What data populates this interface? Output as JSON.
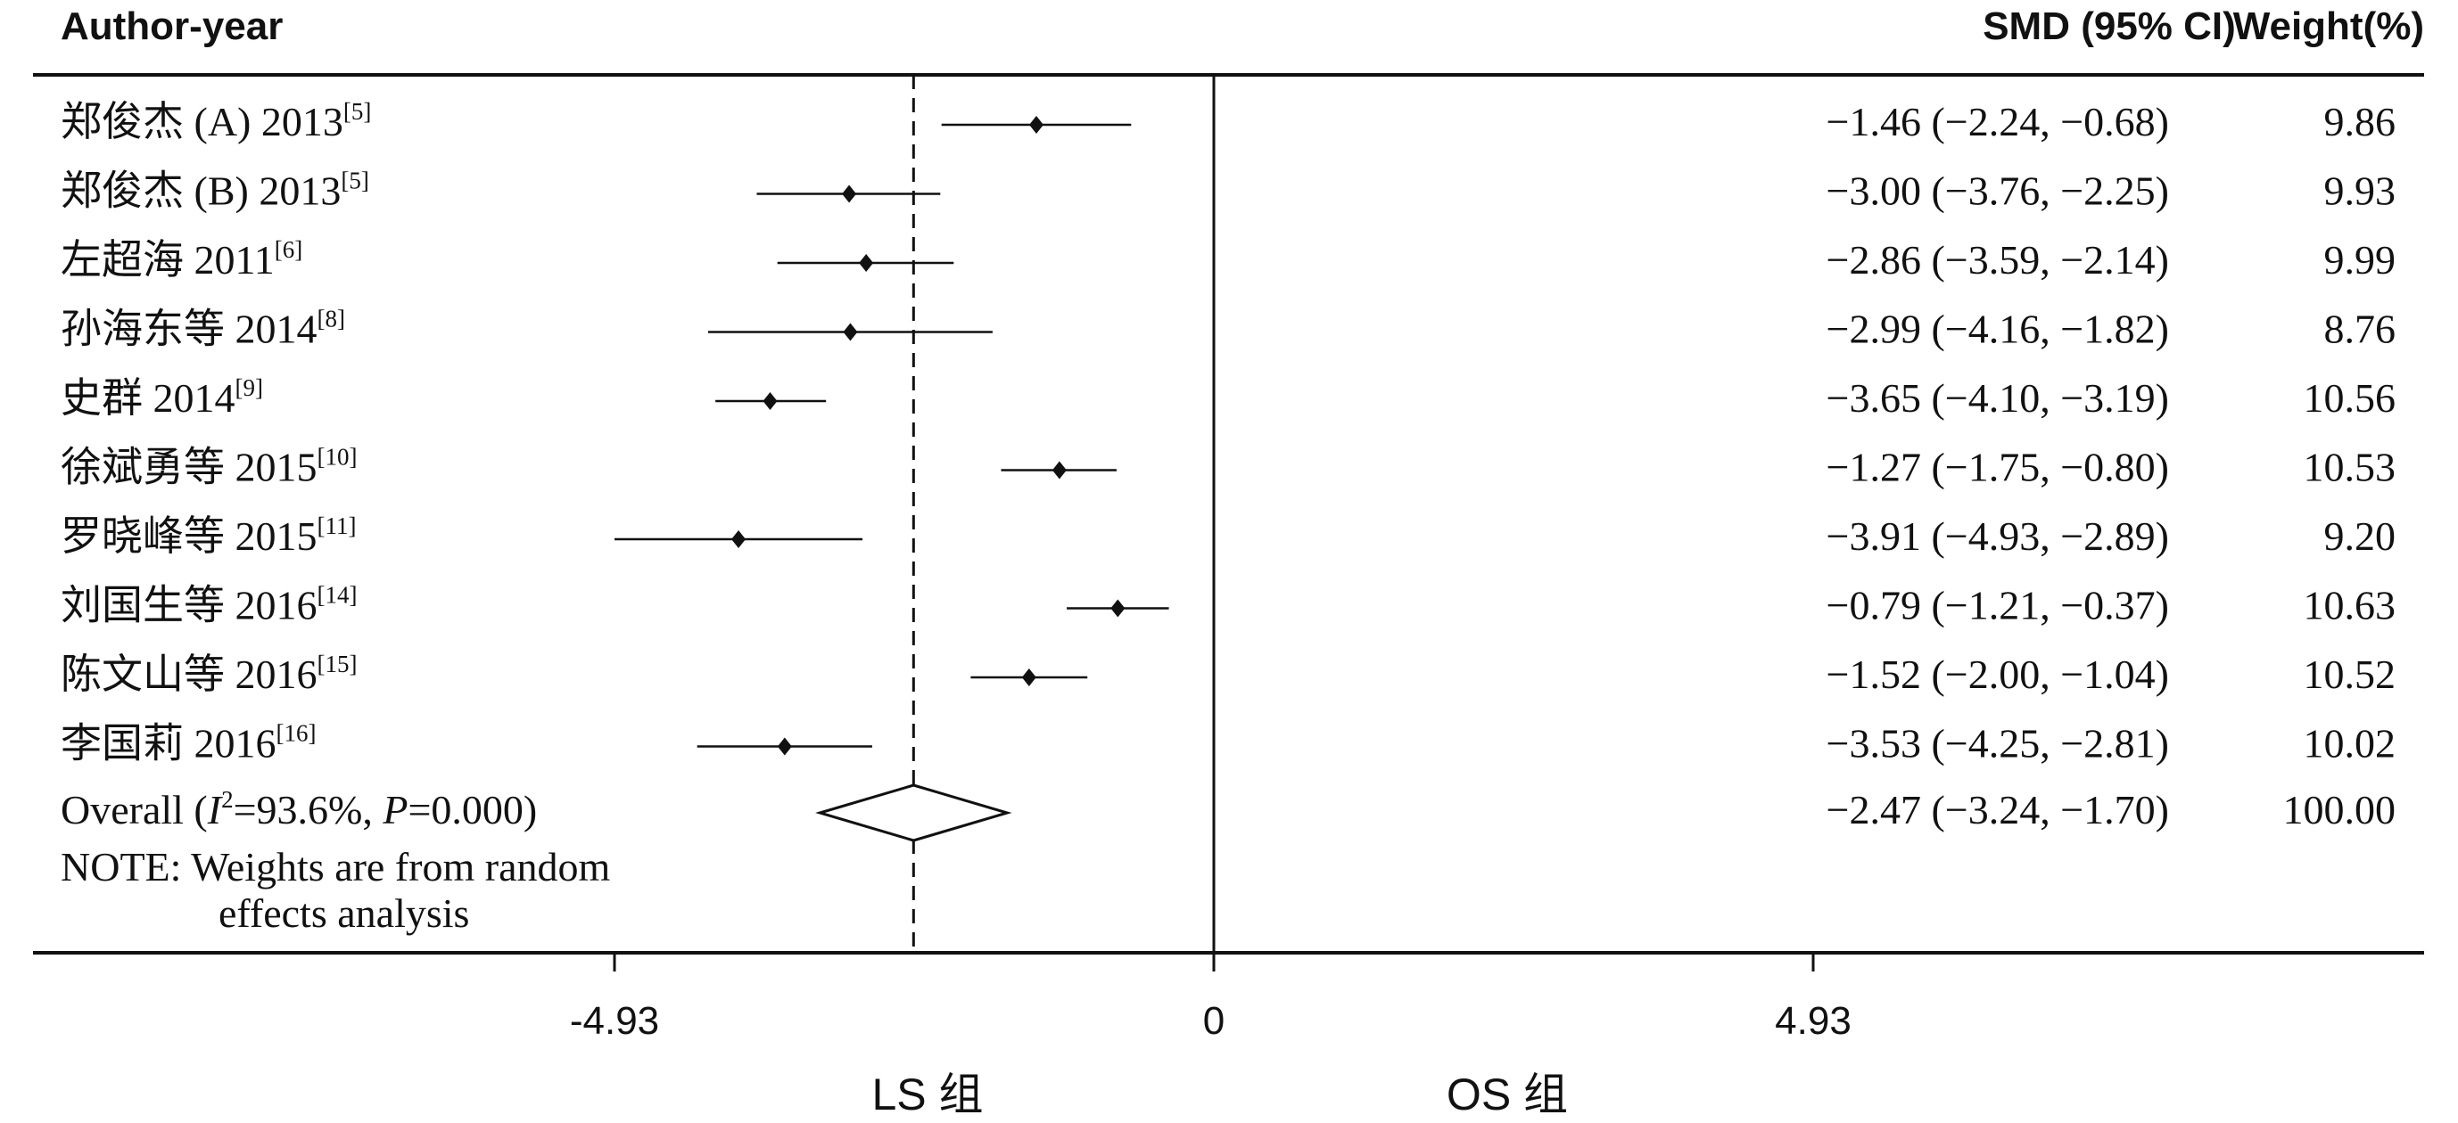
{
  "chart_data": {
    "type": "forest",
    "headers": {
      "study": "Author-year",
      "effect": "SMD (95% CI)",
      "weight": "Weight(%)"
    },
    "studies": [
      {
        "name": "郑俊杰 (A) 2013",
        "ref": "[5]",
        "smd": -1.46,
        "lo": -2.24,
        "hi": -0.68,
        "ci_text": "−1.46 (−2.24, −0.68)",
        "weight": "9.86"
      },
      {
        "name": "郑俊杰 (B) 2013",
        "ref": "[5]",
        "smd": -3.0,
        "lo": -3.76,
        "hi": -2.25,
        "ci_text": "−3.00 (−3.76, −2.25)",
        "weight": "9.93"
      },
      {
        "name": "左超海 2011",
        "ref": "[6]",
        "smd": -2.86,
        "lo": -3.59,
        "hi": -2.14,
        "ci_text": "−2.86 (−3.59, −2.14)",
        "weight": "9.99"
      },
      {
        "name": "孙海东等 2014",
        "ref": "[8]",
        "smd": -2.99,
        "lo": -4.16,
        "hi": -1.82,
        "ci_text": "−2.99 (−4.16, −1.82)",
        "weight": "8.76"
      },
      {
        "name": "史群 2014",
        "ref": "[9]",
        "smd": -3.65,
        "lo": -4.1,
        "hi": -3.19,
        "ci_text": "−3.65 (−4.10, −3.19)",
        "weight": "10.56"
      },
      {
        "name": "徐斌勇等 2015",
        "ref": "[10]",
        "smd": -1.27,
        "lo": -1.75,
        "hi": -0.8,
        "ci_text": "−1.27 (−1.75, −0.80)",
        "weight": "10.53"
      },
      {
        "name": "罗晓峰等 2015",
        "ref": "[11]",
        "smd": -3.91,
        "lo": -4.93,
        "hi": -2.89,
        "ci_text": "−3.91 (−4.93, −2.89)",
        "weight": "9.20"
      },
      {
        "name": "刘国生等 2016",
        "ref": "[14]",
        "smd": -0.79,
        "lo": -1.21,
        "hi": -0.37,
        "ci_text": "−0.79 (−1.21, −0.37)",
        "weight": "10.63"
      },
      {
        "name": "陈文山等 2016",
        "ref": "[15]",
        "smd": -1.52,
        "lo": -2.0,
        "hi": -1.04,
        "ci_text": "−1.52 (−2.00, −1.04)",
        "weight": "10.52"
      },
      {
        "name": "李国莉 2016",
        "ref": "[16]",
        "smd": -3.53,
        "lo": -4.25,
        "hi": -2.81,
        "ci_text": "−3.53 (−4.25, −2.81)",
        "weight": "10.02"
      }
    ],
    "overall": {
      "label_prefix": "Overall  (",
      "i2_symbol": "I",
      "i2_exp": "2",
      "i2_value": "=93.6%, ",
      "p_symbol": "P",
      "p_value": "=0.000)",
      "smd": -2.47,
      "lo": -3.24,
      "hi": -1.7,
      "ci_text": "−2.47 (−3.24, −1.70)",
      "weight": "100.00"
    },
    "note_line1": "NOTE: Weights are from random",
    "note_line2": "effects analysis",
    "xlim": [
      -4.93,
      4.93
    ],
    "ticks": [
      {
        "value": -4.93,
        "label": "-4.93"
      },
      {
        "value": 0,
        "label": "0"
      },
      {
        "value": 4.93,
        "label": "4.93"
      }
    ],
    "group_left": "LS 组",
    "group_right": "OS 组"
  }
}
